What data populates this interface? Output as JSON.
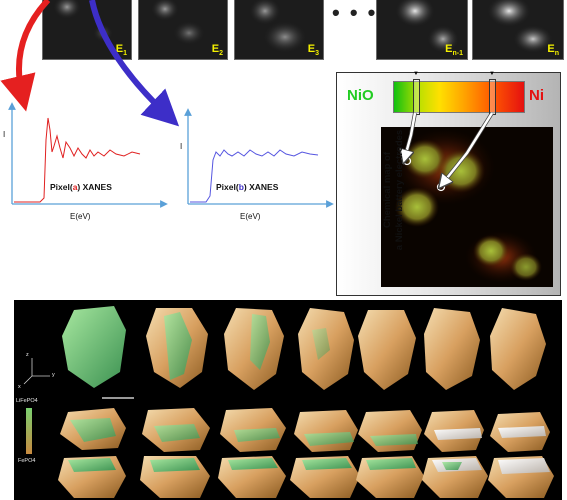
{
  "energy_frames": [
    {
      "label": "E",
      "sub": "1"
    },
    {
      "label": "E",
      "sub": "2"
    },
    {
      "label": "E",
      "sub": "3"
    },
    {
      "label": "E",
      "sub": "n-1"
    },
    {
      "label": "E",
      "sub": "n"
    }
  ],
  "ellipsis": "• • •",
  "plot_a": {
    "caption_prefix": "Pixel(",
    "caption_letter": "a",
    "caption_suffix": ") XANES",
    "ylabel": "I",
    "xlabel": "E(eV)",
    "line_color": "#e02020"
  },
  "plot_b": {
    "caption_prefix": "Pixel(",
    "caption_letter": "b",
    "caption_suffix": ") XANES",
    "ylabel": "I",
    "xlabel": "E(eV)",
    "line_color": "#5555e0"
  },
  "chemical_map": {
    "left_label": "NiO",
    "right_label": "Ni",
    "left_color": "#22cc22",
    "right_color": "#e51010",
    "side_title_line1": "Chemical map of",
    "side_title_line2": "a Nickel battery electrodes"
  },
  "tomography": {
    "axis_z": "z",
    "axis_x": "x",
    "axis_y": "y",
    "legend_top": "LiFePO4",
    "legend_bottom": "FePO4"
  }
}
